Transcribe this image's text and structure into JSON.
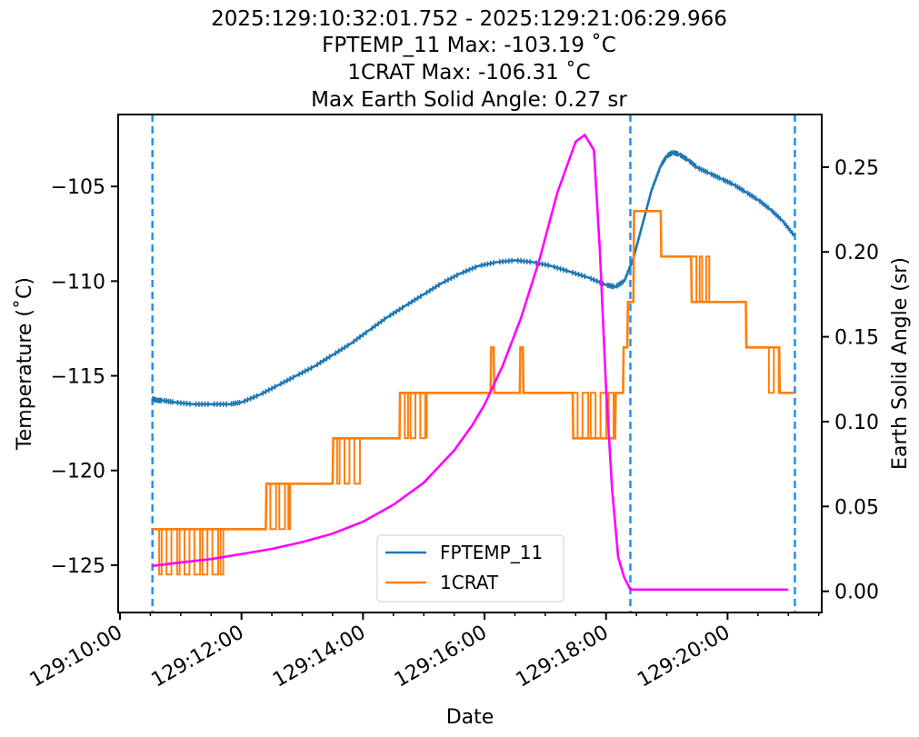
{
  "chart_data": {
    "type": "line",
    "title_lines": [
      "2025:129:10:32:01.752 - 2025:129:21:06:29.966",
      "FPTEMP_11 Max: -103.19 ˚C",
      "1CRAT Max: -106.31 ˚C",
      "Max Earth Solid Angle: 0.27 sr"
    ],
    "xlabel": "Date",
    "ylabel": "Temperature (˚C)",
    "y2label": "Earth Solid Angle (sr)",
    "x_unit": "hours (day 129)",
    "xlim": [
      9.97,
      21.55
    ],
    "ylim": [
      -127.5,
      -101.2
    ],
    "y2lim": [
      -0.0125,
      0.281
    ],
    "x_ticks": [
      10,
      12,
      14,
      16,
      18,
      20
    ],
    "x_tick_labels": [
      "129:10:00",
      "129:12:00",
      "129:14:00",
      "129:16:00",
      "129:18:00",
      "129:20:00"
    ],
    "y_ticks": [
      -105,
      -110,
      -115,
      -120,
      -125
    ],
    "y_tick_labels": [
      "−105",
      "−110",
      "−115",
      "−120",
      "−125"
    ],
    "y2_ticks": [
      0.25,
      0.2,
      0.15,
      0.1,
      0.05,
      0.0
    ],
    "y2_tick_labels": [
      "0.25",
      "0.20",
      "0.15",
      "0.10",
      "0.05",
      "0.00"
    ],
    "vlines": [
      10.534,
      18.4,
      21.108
    ],
    "vline_color": "#1e90ff",
    "legend": {
      "placement": "lower-center",
      "entries": [
        "FPTEMP_11",
        "1CRAT"
      ]
    },
    "series": [
      {
        "name": "FPTEMP_11",
        "color": "#1f77b4",
        "axis": "left",
        "x": [
          10.53,
          10.6,
          10.7,
          10.9,
          11.2,
          11.5,
          11.8,
          12.0,
          12.3,
          12.6,
          12.9,
          13.2,
          13.5,
          13.8,
          14.1,
          14.4,
          14.7,
          15.0,
          15.3,
          15.6,
          15.9,
          16.2,
          16.5,
          16.8,
          17.1,
          17.4,
          17.7,
          18.0,
          18.15,
          18.3,
          18.45,
          18.6,
          18.75,
          18.9,
          19.0,
          19.1,
          19.2,
          19.35,
          19.5,
          19.7,
          19.9,
          20.1,
          20.3,
          20.5,
          20.7,
          20.9,
          21.1
        ],
        "y": [
          -116.2,
          -116.3,
          -116.3,
          -116.4,
          -116.5,
          -116.5,
          -116.5,
          -116.4,
          -116.0,
          -115.5,
          -115.0,
          -114.5,
          -113.9,
          -113.3,
          -112.6,
          -111.9,
          -111.3,
          -110.7,
          -110.1,
          -109.6,
          -109.2,
          -109.0,
          -108.9,
          -109.0,
          -109.2,
          -109.5,
          -109.8,
          -110.2,
          -110.3,
          -110.0,
          -108.8,
          -107.0,
          -105.2,
          -103.9,
          -103.4,
          -103.2,
          -103.3,
          -103.6,
          -104.0,
          -104.3,
          -104.6,
          -104.9,
          -105.3,
          -105.7,
          -106.2,
          -106.8,
          -107.6
        ]
      },
      {
        "name": "1CRAT",
        "color": "#ff7f0e",
        "axis": "left",
        "x": [
          10.53,
          12.4,
          12.41,
          13.5,
          13.51,
          14.6,
          14.61,
          16.1,
          16.11,
          16.15,
          16.16,
          16.58,
          16.59,
          16.63,
          16.64,
          17.45,
          17.46,
          18.15,
          18.16,
          18.28,
          18.29,
          18.35,
          18.36,
          18.45,
          18.46,
          18.9,
          18.91,
          19.4,
          19.41,
          20.3,
          20.31,
          20.85,
          20.86,
          21.1
        ],
        "y": [
          -123.1,
          -123.1,
          -120.7,
          -120.7,
          -118.3,
          -118.3,
          -115.9,
          -115.9,
          -113.5,
          -113.5,
          -115.9,
          -115.9,
          -113.5,
          -113.5,
          -115.9,
          -115.9,
          -118.3,
          -118.3,
          -115.9,
          -115.9,
          -113.5,
          -113.5,
          -111.1,
          -111.1,
          -106.3,
          -106.3,
          -108.7,
          -108.7,
          -111.1,
          -111.1,
          -113.5,
          -113.5,
          -115.9,
          -115.9
        ]
      },
      {
        "name": "",
        "color": "#ff00ff",
        "axis": "right",
        "x": [
          10.53,
          11.0,
          11.5,
          12.0,
          12.5,
          13.0,
          13.5,
          14.0,
          14.5,
          15.0,
          15.5,
          15.8,
          16.0,
          16.3,
          16.6,
          16.9,
          17.2,
          17.5,
          17.65,
          17.8,
          17.9,
          18.0,
          18.1,
          18.2,
          18.3,
          18.4,
          19.0,
          20.0,
          21.0
        ],
        "y": [
          0.015,
          0.017,
          0.019,
          0.022,
          0.025,
          0.029,
          0.034,
          0.041,
          0.051,
          0.064,
          0.083,
          0.098,
          0.11,
          0.133,
          0.161,
          0.195,
          0.235,
          0.265,
          0.269,
          0.26,
          0.2,
          0.12,
          0.06,
          0.02,
          0.008,
          0.001,
          0.001,
          0.001,
          0.001
        ]
      }
    ],
    "crat_toggles": [
      {
        "x0": 10.55,
        "x1": 11.7,
        "a": -123.1,
        "b": -125.5
      },
      {
        "x0": 12.42,
        "x1": 12.8,
        "a": -120.7,
        "b": -123.1
      },
      {
        "x0": 13.52,
        "x1": 13.95,
        "a": -118.3,
        "b": -120.7
      },
      {
        "x0": 14.62,
        "x1": 15.05,
        "a": -115.9,
        "b": -118.3
      },
      {
        "x0": 17.45,
        "x1": 18.15,
        "a": -115.9,
        "b": -118.3
      },
      {
        "x0": 19.42,
        "x1": 19.7,
        "a": -108.7,
        "b": -111.1
      },
      {
        "x0": 20.6,
        "x1": 20.85,
        "a": -113.5,
        "b": -115.9
      }
    ]
  }
}
